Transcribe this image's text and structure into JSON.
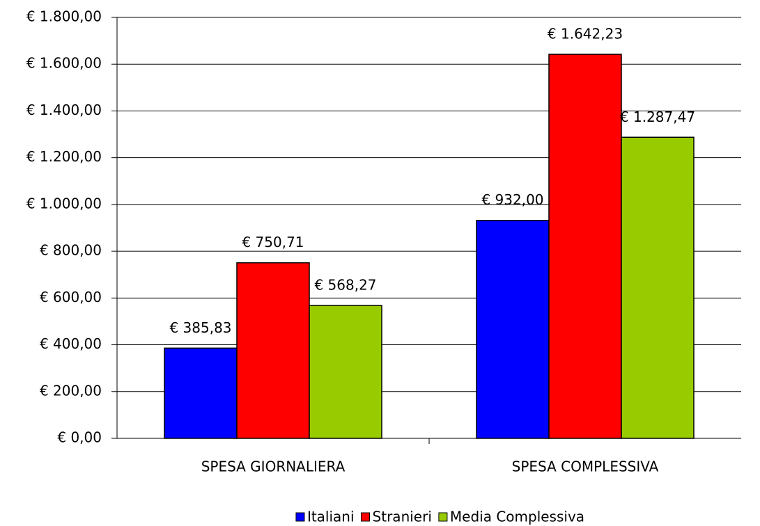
{
  "chart_data": {
    "type": "bar",
    "categories": [
      "SPESA GIORNALIERA",
      "SPESA COMPLESSIVA"
    ],
    "series": [
      {
        "name": "Italiani",
        "color": "#0000ff",
        "values": [
          385.83,
          932.0
        ],
        "value_labels": [
          "€ 385,83",
          "€ 932,00"
        ]
      },
      {
        "name": "Stranieri",
        "color": "#ff0000",
        "values": [
          750.71,
          1642.23
        ],
        "value_labels": [
          "€ 750,71",
          "€ 1.642,23"
        ]
      },
      {
        "name": "Media Complessiva",
        "color": "#99cc00",
        "values": [
          568.27,
          1287.47
        ],
        "value_labels": [
          "€ 568,27",
          "€ 1.287,47"
        ]
      }
    ],
    "ylim": [
      0,
      1800
    ],
    "yticks": [
      {
        "value": 0,
        "label": "€ 0,00"
      },
      {
        "value": 200,
        "label": "€ 200,00"
      },
      {
        "value": 400,
        "label": "€ 400,00"
      },
      {
        "value": 600,
        "label": "€ 600,00"
      },
      {
        "value": 800,
        "label": "€ 800,00"
      },
      {
        "value": 1000,
        "label": "€ 1.000,00"
      },
      {
        "value": 1200,
        "label": "€ 1.200,00"
      },
      {
        "value": 1400,
        "label": "€ 1.400,00"
      },
      {
        "value": 1600,
        "label": "€ 1.600,00"
      },
      {
        "value": 1800,
        "label": "€ 1.800,00"
      }
    ],
    "grid": true,
    "legend": "bottom"
  }
}
